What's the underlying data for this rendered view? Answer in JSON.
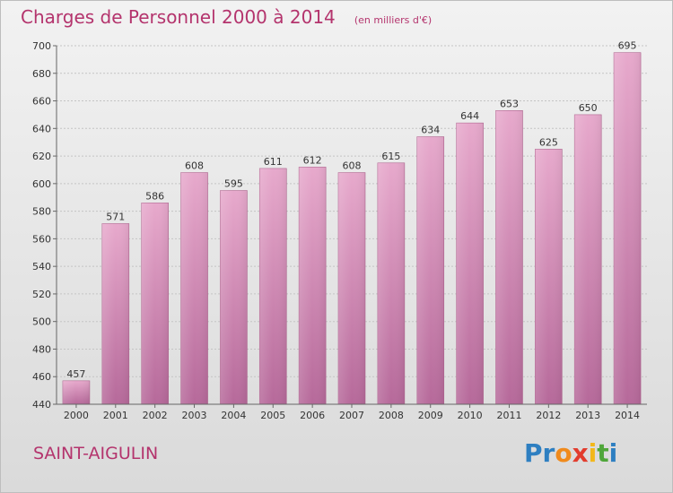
{
  "chart_data": {
    "type": "bar",
    "title": "Charges de Personnel 2000 à 2014",
    "subtitle": "(en milliers d'€)",
    "categories": [
      "2000",
      "2001",
      "2002",
      "2003",
      "2004",
      "2005",
      "2006",
      "2007",
      "2008",
      "2009",
      "2010",
      "2011",
      "2012",
      "2013",
      "2014"
    ],
    "values": [
      457,
      571,
      586,
      608,
      595,
      611,
      612,
      608,
      615,
      634,
      644,
      653,
      625,
      650,
      695
    ],
    "ylim": [
      440,
      700
    ],
    "yticks": [
      440,
      460,
      480,
      500,
      520,
      540,
      560,
      580,
      600,
      620,
      640,
      660,
      680,
      700
    ],
    "grid": true,
    "bar_color": "#cf7aaa"
  },
  "footer": {
    "commune": "SAINT-AIGULIN",
    "brand_letters": [
      {
        "ch": "P",
        "color": "#2e7fc1"
      },
      {
        "ch": "r",
        "color": "#2e7fc1"
      },
      {
        "ch": "o",
        "color": "#f08a1c"
      },
      {
        "ch": "x",
        "color": "#e23c2d"
      },
      {
        "ch": "i",
        "color": "#f2b71a"
      },
      {
        "ch": "t",
        "color": "#4fa63a"
      },
      {
        "ch": "i",
        "color": "#2e7fc1"
      }
    ]
  }
}
